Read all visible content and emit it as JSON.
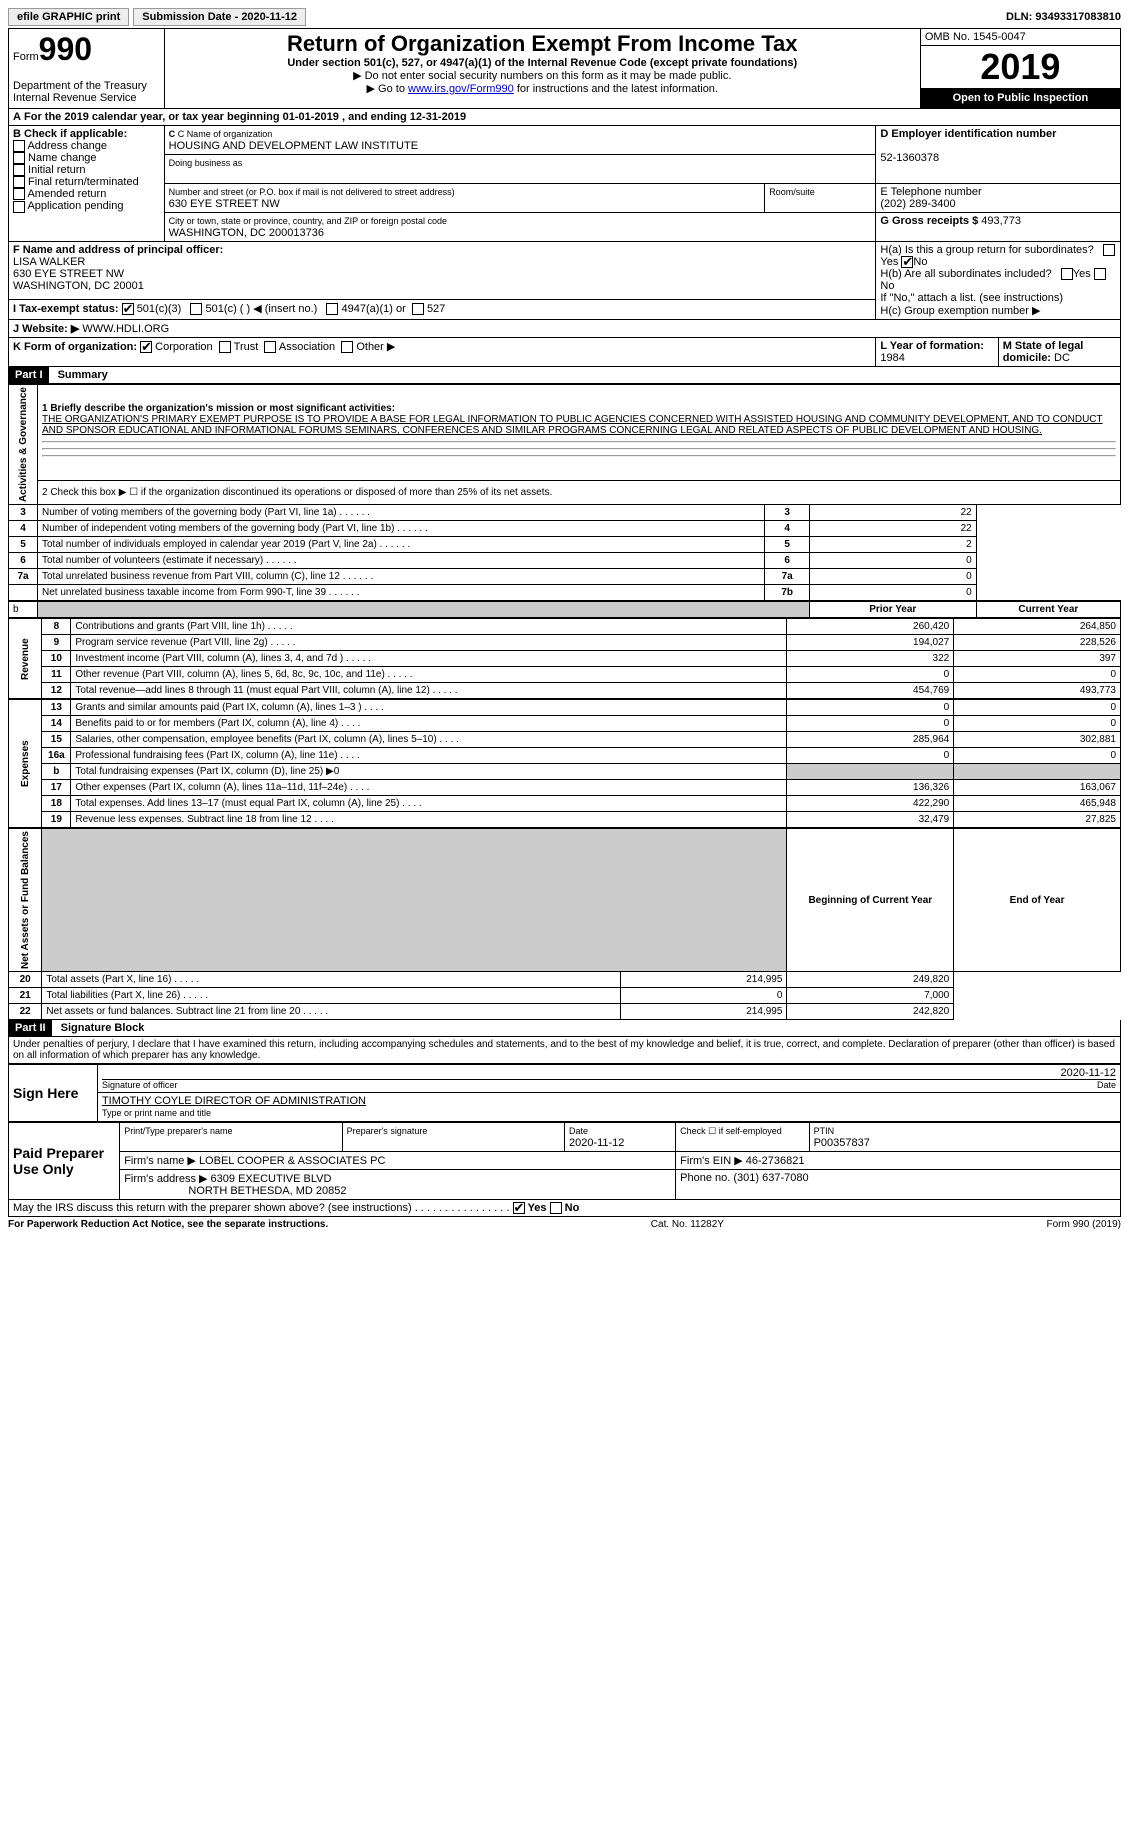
{
  "topbar": {
    "efile": "efile GRAPHIC print",
    "submission": "Submission Date - 2020-11-12",
    "dln": "DLN: 93493317083810"
  },
  "header": {
    "form": "Form",
    "form_num": "990",
    "dept": "Department of the Treasury\nInternal Revenue Service",
    "title": "Return of Organization Exempt From Income Tax",
    "sub1": "Under section 501(c), 527, or 4947(a)(1) of the Internal Revenue Code (except private foundations)",
    "sub2": "▶ Do not enter social security numbers on this form as it may be made public.",
    "sub3_a": "▶ Go to ",
    "sub3_link": "www.irs.gov/Form990",
    "sub3_b": " for instructions and the latest information.",
    "omb": "OMB No. 1545-0047",
    "year": "2019",
    "inspection": "Open to Public Inspection"
  },
  "period": {
    "text_a": "For the 2019 calendar year, or tax year beginning ",
    "begin": "01-01-2019",
    "text_b": " , and ending ",
    "end": "12-31-2019"
  },
  "boxB": {
    "label": "B Check if applicable:",
    "items": [
      "Address change",
      "Name change",
      "Initial return",
      "Final return/terminated",
      "Amended return",
      "Application pending"
    ]
  },
  "boxC": {
    "name_label": "C Name of organization",
    "name": "HOUSING AND DEVELOPMENT LAW INSTITUTE",
    "dba_label": "Doing business as",
    "dba": "",
    "addr_label": "Number and street (or P.O. box if mail is not delivered to street address)",
    "room_label": "Room/suite",
    "addr": "630 EYE STREET NW",
    "city_label": "City or town, state or province, country, and ZIP or foreign postal code",
    "city": "WASHINGTON, DC  200013736"
  },
  "boxD": {
    "label": "D Employer identification number",
    "value": "52-1360378"
  },
  "boxE": {
    "label": "E Telephone number",
    "value": "(202) 289-3400"
  },
  "boxG": {
    "label": "G Gross receipts $",
    "value": "493,773"
  },
  "boxF": {
    "label": "F Name and address of principal officer:",
    "name": "LISA WALKER",
    "addr1": "630 EYE STREET NW",
    "addr2": "WASHINGTON, DC  20001"
  },
  "boxH": {
    "ha": "H(a)  Is this a group return for subordinates?",
    "hb": "H(b)  Are all subordinates included?",
    "hnote": "If \"No,\" attach a list. (see instructions)",
    "hc": "H(c)  Group exemption number ▶"
  },
  "taxexempt": {
    "label": "I  Tax-exempt status:",
    "c3": "501(c)(3)",
    "c": "501(c) (  ) ◀ (insert no.)",
    "a1": "4947(a)(1) or",
    "s527": "527"
  },
  "website": {
    "label": "J   Website: ▶",
    "value": "WWW.HDLI.ORG"
  },
  "boxK": {
    "label": "K Form of organization:",
    "corp": "Corporation",
    "trust": "Trust",
    "assoc": "Association",
    "other": "Other ▶"
  },
  "boxL": {
    "label": "L Year of formation:",
    "value": "1984"
  },
  "boxM": {
    "label": "M State of legal domicile:",
    "value": "DC"
  },
  "part1": {
    "header": "Part I",
    "title": "Summary",
    "l1_label": "1  Briefly describe the organization's mission or most significant activities:",
    "l1_text": "THE ORGANIZATION'S PRIMARY EXEMPT PURPOSE IS TO PROVIDE A BASE FOR LEGAL INFORMATION TO PUBLIC AGENCIES CONCERNED WITH ASSISTED HOUSING AND COMMUNITY DEVELOPMENT, AND TO CONDUCT AND SPONSOR EDUCATIONAL AND INFORMATIONAL FORUMS SEMINARS, CONFERENCES AND SIMILAR PROGRAMS CONCERNING LEGAL AND RELATED ASPECTS OF PUBLIC DEVELOPMENT AND HOUSING.",
    "l2": "2   Check this box ▶ ☐  if the organization discontinued its operations or disposed of more than 25% of its net assets.",
    "rows_gov": [
      {
        "n": "3",
        "t": "Number of voting members of the governing body (Part VI, line 1a)",
        "k": "3",
        "v": "22"
      },
      {
        "n": "4",
        "t": "Number of independent voting members of the governing body (Part VI, line 1b)",
        "k": "4",
        "v": "22"
      },
      {
        "n": "5",
        "t": "Total number of individuals employed in calendar year 2019 (Part V, line 2a)",
        "k": "5",
        "v": "2"
      },
      {
        "n": "6",
        "t": "Total number of volunteers (estimate if necessary)",
        "k": "6",
        "v": "0"
      },
      {
        "n": "7a",
        "t": "Total unrelated business revenue from Part VIII, column (C), line 12",
        "k": "7a",
        "v": "0"
      },
      {
        "n": "",
        "t": "Net unrelated business taxable income from Form 990-T, line 39",
        "k": "7b",
        "v": "0"
      }
    ],
    "col_prior": "Prior Year",
    "col_current": "Current Year",
    "rows_rev": [
      {
        "n": "8",
        "t": "Contributions and grants (Part VIII, line 1h)",
        "p": "260,420",
        "c": "264,850"
      },
      {
        "n": "9",
        "t": "Program service revenue (Part VIII, line 2g)",
        "p": "194,027",
        "c": "228,526"
      },
      {
        "n": "10",
        "t": "Investment income (Part VIII, column (A), lines 3, 4, and 7d )",
        "p": "322",
        "c": "397"
      },
      {
        "n": "11",
        "t": "Other revenue (Part VIII, column (A), lines 5, 6d, 8c, 9c, 10c, and 11e)",
        "p": "0",
        "c": "0"
      },
      {
        "n": "12",
        "t": "Total revenue—add lines 8 through 11 (must equal Part VIII, column (A), line 12)",
        "p": "454,769",
        "c": "493,773"
      }
    ],
    "rows_exp": [
      {
        "n": "13",
        "t": "Grants and similar amounts paid (Part IX, column (A), lines 1–3 )",
        "p": "0",
        "c": "0"
      },
      {
        "n": "14",
        "t": "Benefits paid to or for members (Part IX, column (A), line 4)",
        "p": "0",
        "c": "0"
      },
      {
        "n": "15",
        "t": "Salaries, other compensation, employee benefits (Part IX, column (A), lines 5–10)",
        "p": "285,964",
        "c": "302,881"
      },
      {
        "n": "16a",
        "t": "Professional fundraising fees (Part IX, column (A), line 11e)",
        "p": "0",
        "c": "0"
      },
      {
        "n": "b",
        "t": "Total fundraising expenses (Part IX, column (D), line 25) ▶0",
        "p": "",
        "c": "",
        "shade": true
      },
      {
        "n": "17",
        "t": "Other expenses (Part IX, column (A), lines 11a–11d, 11f–24e)",
        "p": "136,326",
        "c": "163,067"
      },
      {
        "n": "18",
        "t": "Total expenses. Add lines 13–17 (must equal Part IX, column (A), line 25)",
        "p": "422,290",
        "c": "465,948"
      },
      {
        "n": "19",
        "t": "Revenue less expenses. Subtract line 18 from line 12",
        "p": "32,479",
        "c": "27,825"
      }
    ],
    "col_begin": "Beginning of Current Year",
    "col_end": "End of Year",
    "rows_net": [
      {
        "n": "20",
        "t": "Total assets (Part X, line 16)",
        "p": "214,995",
        "c": "249,820"
      },
      {
        "n": "21",
        "t": "Total liabilities (Part X, line 26)",
        "p": "0",
        "c": "7,000"
      },
      {
        "n": "22",
        "t": "Net assets or fund balances. Subtract line 21 from line 20",
        "p": "214,995",
        "c": "242,820"
      }
    ],
    "side_gov": "Activities & Governance",
    "side_rev": "Revenue",
    "side_exp": "Expenses",
    "side_net": "Net Assets or Fund Balances"
  },
  "part2": {
    "header": "Part II",
    "title": "Signature Block",
    "decl": "Under penalties of perjury, I declare that I have examined this return, including accompanying schedules and statements, and to the best of my knowledge and belief, it is true, correct, and complete. Declaration of preparer (other than officer) is based on all information of which preparer has any knowledge.",
    "sign_here": "Sign Here",
    "sig_officer": "Signature of officer",
    "sig_date": "2020-11-12",
    "date_label": "Date",
    "officer_name": "TIMOTHY COYLE  DIRECTOR OF ADMINISTRATION",
    "name_label": "Type or print name and title",
    "paid": "Paid Preparer Use Only",
    "prep_name_label": "Print/Type preparer's name",
    "prep_sig_label": "Preparer's signature",
    "prep_date_label": "Date",
    "prep_date": "2020-11-12",
    "check_self": "Check ☐ if self-employed",
    "ptin_label": "PTIN",
    "ptin": "P00357837",
    "firm_name_label": "Firm's name    ▶",
    "firm_name": "LOBEL COOPER & ASSOCIATES PC",
    "firm_ein_label": "Firm's EIN ▶",
    "firm_ein": "46-2736821",
    "firm_addr_label": "Firm's address ▶",
    "firm_addr1": "6309 EXECUTIVE BLVD",
    "firm_addr2": "NORTH BETHESDA, MD  20852",
    "phone_label": "Phone no.",
    "phone": "(301) 637-7080",
    "may_irs": "May the IRS discuss this return with the preparer shown above? (see instructions)",
    "yes": "Yes",
    "no": "No"
  },
  "footer": {
    "left": "For Paperwork Reduction Act Notice, see the separate instructions.",
    "mid": "Cat. No. 11282Y",
    "right": "Form 990 (2019)"
  }
}
